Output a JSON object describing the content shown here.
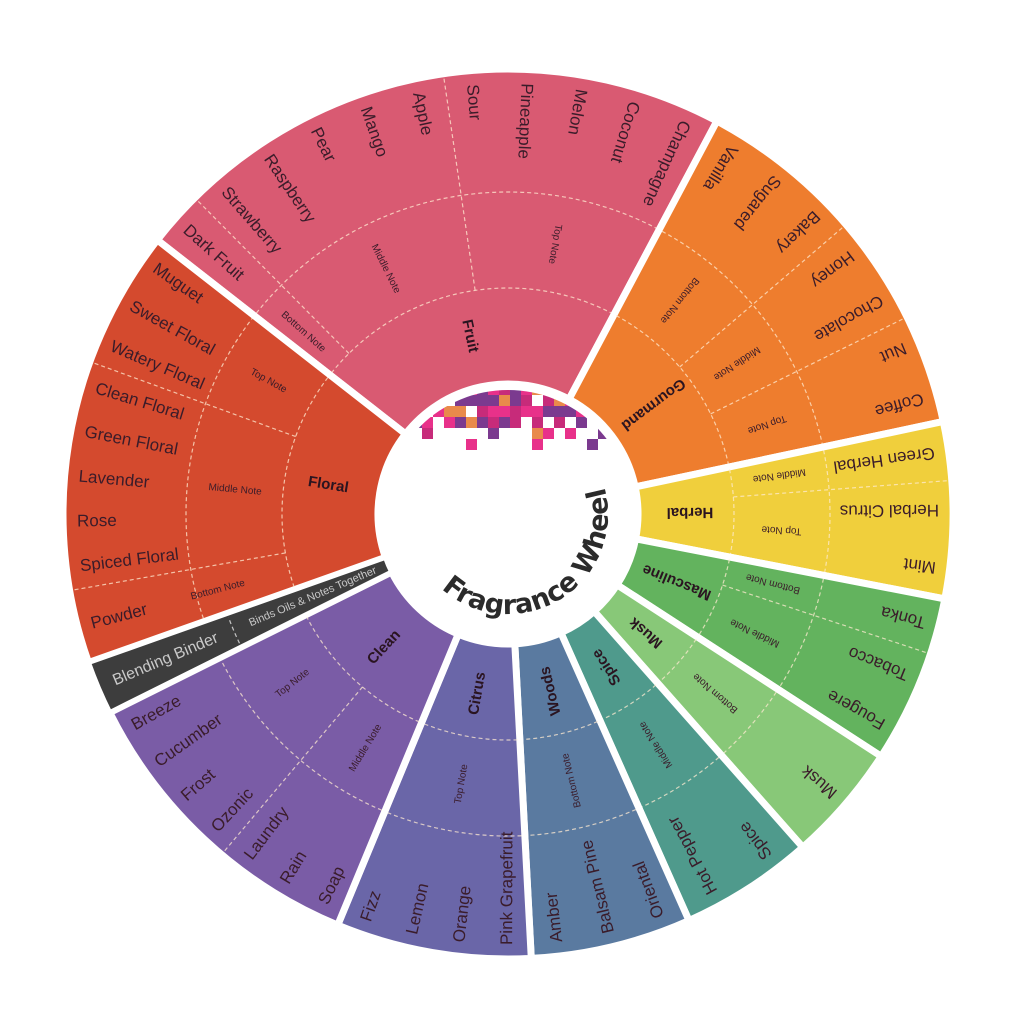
{
  "title": "Fragrance Wheel",
  "colors": {
    "separator": "#ffffff",
    "center": "#ffffff",
    "text": "#3a1c2a",
    "mosaic": [
      "#e8318a",
      "#7b3a8f",
      "#e98a4b",
      "#c72b7a"
    ]
  },
  "binder": {
    "name": "Blending Binder",
    "note": "Binds Oils & Notes Together",
    "color": "#3d3d3d"
  },
  "sectors": [
    {
      "name": "Fruit",
      "color": "#d95a72",
      "notes": [
        {
          "label": "Bottom Note",
          "items": [
            "Dark Fruit"
          ]
        },
        {
          "label": "Middle Note",
          "items": [
            "Strawberry",
            "Raspberry",
            "Pear",
            "Mango",
            "Apple"
          ]
        },
        {
          "label": "Top Note",
          "items": [
            "Sour",
            "Pineapple",
            "Melon",
            "Coconut",
            "Champagne"
          ]
        }
      ]
    },
    {
      "name": "Gourmand",
      "color": "#ee7d2e",
      "notes": [
        {
          "label": "Bottom Note",
          "items": [
            "Vanilla",
            "Sugared",
            "Bakery"
          ]
        },
        {
          "label": "Middle Note",
          "items": [
            "Honey",
            "Chocolate"
          ]
        },
        {
          "label": "Top Note",
          "items": [
            "Nut",
            "Coffee"
          ]
        }
      ]
    },
    {
      "name": "Herbal",
      "color": "#f0cf3c",
      "notes": [
        {
          "label": "Middle Note",
          "items": [
            "Green Herbal"
          ]
        },
        {
          "label": "Top Note",
          "items": [
            "Herbal Citrus",
            "Mint"
          ]
        }
      ]
    },
    {
      "name": "Masculine",
      "color": "#63b35e",
      "notes": [
        {
          "label": "Bottom Note",
          "items": [
            "Tonka"
          ]
        },
        {
          "label": "Middle Note",
          "items": [
            "Tobacco",
            "Fougere"
          ]
        }
      ]
    },
    {
      "name": "Musk",
      "color": "#88c878",
      "notes": [
        {
          "label": "Bottom Note",
          "items": [
            "Musk"
          ]
        }
      ]
    },
    {
      "name": "Spice",
      "color": "#4f9a8c",
      "notes": [
        {
          "label": "Middle Note",
          "items": [
            "Spice",
            "Hot Pepper"
          ]
        }
      ]
    },
    {
      "name": "Woods",
      "color": "#5a7aa0",
      "notes": [
        {
          "label": "Bottom Note",
          "items": [
            "Oriental",
            "Balsam Pine",
            "Amber"
          ]
        }
      ]
    },
    {
      "name": "Citrus",
      "color": "#6a66a8",
      "notes": [
        {
          "label": "Top Note",
          "items": [
            "Pink Grapefruit",
            "Orange",
            "Lemon",
            "Fizz"
          ]
        }
      ]
    },
    {
      "name": "Clean",
      "color": "#7a5ca6",
      "notes": [
        {
          "label": "Middle Note",
          "items": [
            "Soap",
            "Rain",
            "Laundry"
          ]
        },
        {
          "label": "Top Note",
          "items": [
            "Ozonic",
            "Frost",
            "Cucumber",
            "Breeze"
          ]
        }
      ]
    },
    {
      "name": "Floral",
      "color": "#d44a2e",
      "notes": [
        {
          "label": "Bottom Note",
          "items": [
            "Powder"
          ]
        },
        {
          "label": "Middle Note",
          "items": [
            "Spiced Floral",
            "Rose",
            "Lavender",
            "Green Floral",
            "Clean Floral"
          ]
        },
        {
          "label": "Top Note",
          "items": [
            "Watery Floral",
            "Sweet Floral",
            "Muguet"
          ]
        }
      ]
    }
  ]
}
